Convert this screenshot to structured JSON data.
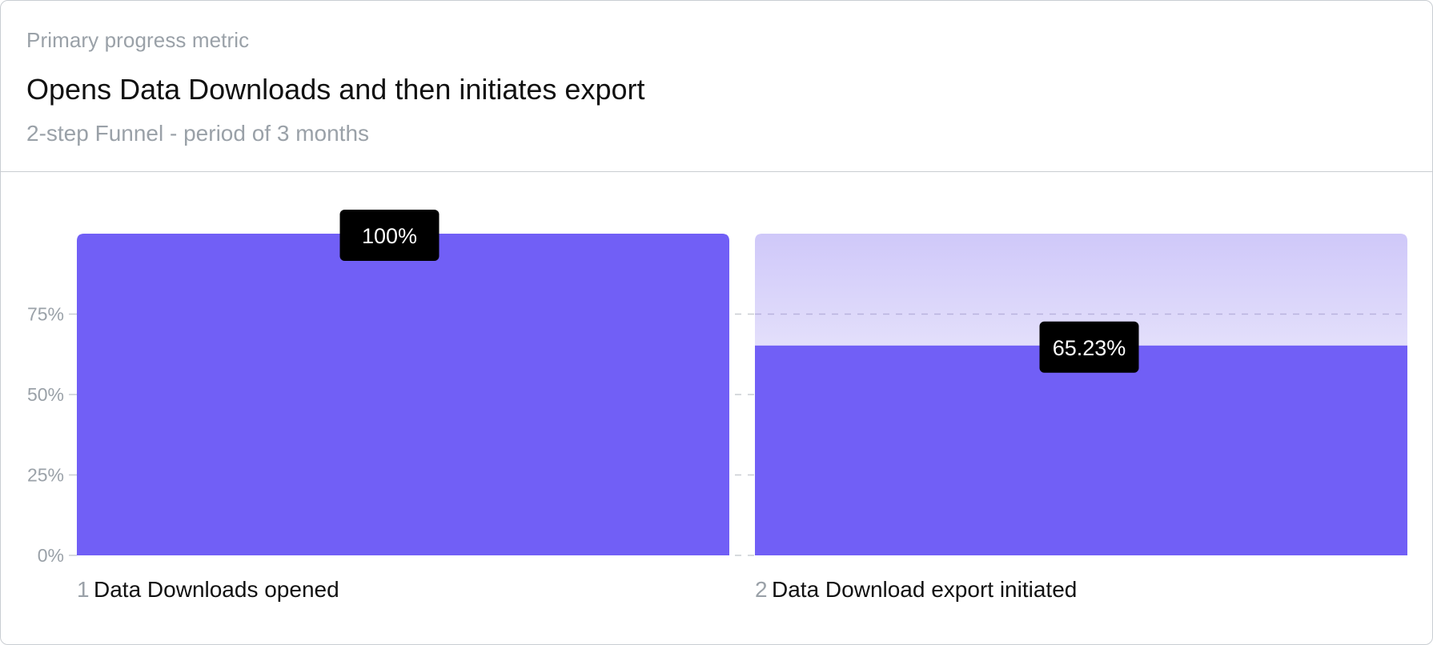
{
  "header": {
    "eyebrow": "Primary progress metric",
    "title": "Opens Data Downloads and then initiates export",
    "subtitle": "2-step Funnel - period of 3 months"
  },
  "colors": {
    "bar": "#715ff6",
    "bar_ghost_top": "#cfc8f9",
    "bar_ghost_bottom": "#e3dffb",
    "badge": "#000000",
    "grid": "#c9cdd2"
  },
  "chart_data": {
    "type": "bar",
    "categories": [
      "Data Downloads opened",
      "Data Download export initiated"
    ],
    "step_numbers": [
      "1",
      "2"
    ],
    "values": [
      100,
      65.23
    ],
    "value_labels": [
      "100%",
      "65.23%"
    ],
    "ylim": [
      0,
      100
    ],
    "yticks": [
      {
        "value": 0,
        "label": "0%"
      },
      {
        "value": 25,
        "label": "25%"
      },
      {
        "value": 50,
        "label": "50%"
      },
      {
        "value": 75,
        "label": "75%"
      }
    ],
    "grid": true
  }
}
